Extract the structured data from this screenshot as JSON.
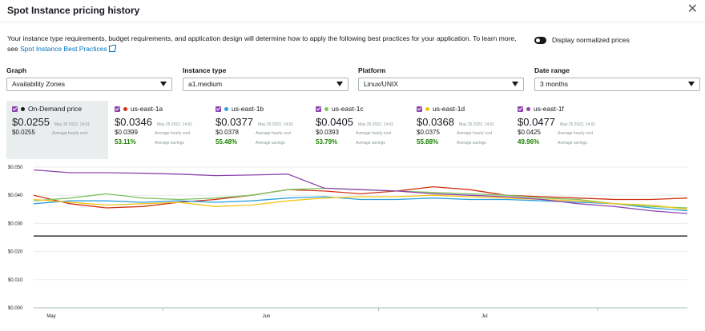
{
  "title": "Spot Instance pricing history",
  "description": "Your instance type requirements, budget requirements, and application design will determine how to apply the following best practices for your application. To learn more, see ",
  "link_text": "Spot Instance Best Practices",
  "toggle_label": "Display normalized prices",
  "fields": [
    {
      "label": "Graph",
      "value": "Availability Zones"
    },
    {
      "label": "Instance type",
      "value": "a1.medium"
    },
    {
      "label": "Platform",
      "value": "Linux/UNIX"
    },
    {
      "label": "Date range",
      "value": "3 months"
    }
  ],
  "series": [
    {
      "name": "On-Demand price",
      "color": "#16191f",
      "price": "$0.0255",
      "timestamp": "May 25 2022, 14:01",
      "avg": "$0.0255",
      "avg_label": "Average hourly cost",
      "savings": "",
      "savings_label": ""
    },
    {
      "name": "us-east-1a",
      "color": "#d13212",
      "price": "$0.0346",
      "timestamp": "May 25 2022, 14:01",
      "avg": "$0.0399",
      "avg_label": "Average hourly cost",
      "savings": "53.11%",
      "savings_label": "Average savings"
    },
    {
      "name": "us-east-1b",
      "color": "#2ea0e0",
      "price": "$0.0377",
      "timestamp": "May 25 2022, 14:01",
      "avg": "$0.0378",
      "avg_label": "Average hourly cost",
      "savings": "55.48%",
      "savings_label": "Average savings"
    },
    {
      "name": "us-east-1c",
      "color": "#7fc463",
      "price": "$0.0405",
      "timestamp": "May 25 2022, 14:01",
      "avg": "$0.0393",
      "avg_label": "Average hourly cost",
      "savings": "53.79%",
      "savings_label": "Average savings"
    },
    {
      "name": "us-east-1d",
      "color": "#f2c418",
      "price": "$0.0368",
      "timestamp": "May 25 2022, 14:01",
      "avg": "$0.0375",
      "avg_label": "Average hourly cost",
      "savings": "55.88%",
      "savings_label": "Average savings"
    },
    {
      "name": "us-east-1f",
      "color": "#8e44ad",
      "price": "$0.0477",
      "timestamp": "May 25 2022, 14:01",
      "avg": "$0.0425",
      "avg_label": "Average hourly cost",
      "savings": "49.96%",
      "savings_label": "Average savings"
    }
  ],
  "chart_data": {
    "type": "line",
    "y_ticks": [
      "$0.050",
      "$0.040",
      "$0.030",
      "$0.020",
      "$0.010",
      "$0.000"
    ],
    "ylim": [
      0,
      0.05
    ],
    "x_ticks": [
      "May",
      "Jun",
      "Jul"
    ],
    "x": [
      0,
      5,
      10,
      15,
      20,
      25,
      30,
      35,
      40,
      45,
      50,
      55,
      60,
      65,
      70,
      75,
      80,
      85,
      90
    ],
    "series": [
      {
        "name": "On-Demand price",
        "color": "#16191f",
        "values": [
          0.0255,
          0.0255,
          0.0255,
          0.0255,
          0.0255,
          0.0255,
          0.0255,
          0.0255,
          0.0255,
          0.0255,
          0.0255,
          0.0255,
          0.0255,
          0.0255,
          0.0255,
          0.0255,
          0.0255,
          0.0255,
          0.0255
        ]
      },
      {
        "name": "us-east-1a",
        "color": "#d13212",
        "values": [
          0.04,
          0.037,
          0.0355,
          0.036,
          0.0375,
          0.0385,
          0.04,
          0.042,
          0.0415,
          0.0405,
          0.0415,
          0.043,
          0.042,
          0.04,
          0.0395,
          0.039,
          0.0385,
          0.0385,
          0.039
        ]
      },
      {
        "name": "us-east-1b",
        "color": "#2ea0e0",
        "values": [
          0.037,
          0.038,
          0.038,
          0.0375,
          0.038,
          0.0375,
          0.038,
          0.039,
          0.0395,
          0.0385,
          0.0385,
          0.039,
          0.0385,
          0.0385,
          0.038,
          0.0375,
          0.037,
          0.0355,
          0.0345
        ]
      },
      {
        "name": "us-east-1c",
        "color": "#7fc463",
        "values": [
          0.038,
          0.039,
          0.0405,
          0.039,
          0.0385,
          0.039,
          0.04,
          0.042,
          0.0425,
          0.042,
          0.0415,
          0.041,
          0.0405,
          0.04,
          0.039,
          0.0385,
          0.037,
          0.036,
          0.0355
        ]
      },
      {
        "name": "us-east-1d",
        "color": "#f2c418",
        "values": [
          0.0385,
          0.0375,
          0.0365,
          0.037,
          0.0375,
          0.036,
          0.0365,
          0.038,
          0.039,
          0.0395,
          0.0395,
          0.04,
          0.0395,
          0.039,
          0.0385,
          0.038,
          0.037,
          0.0365,
          0.035
        ]
      },
      {
        "name": "us-east-1f",
        "color": "#8e44ad",
        "values": [
          0.049,
          0.048,
          0.048,
          0.0478,
          0.0475,
          0.047,
          0.0472,
          0.0475,
          0.0425,
          0.042,
          0.0415,
          0.0405,
          0.04,
          0.0395,
          0.0385,
          0.037,
          0.036,
          0.0345,
          0.0335
        ]
      }
    ]
  }
}
